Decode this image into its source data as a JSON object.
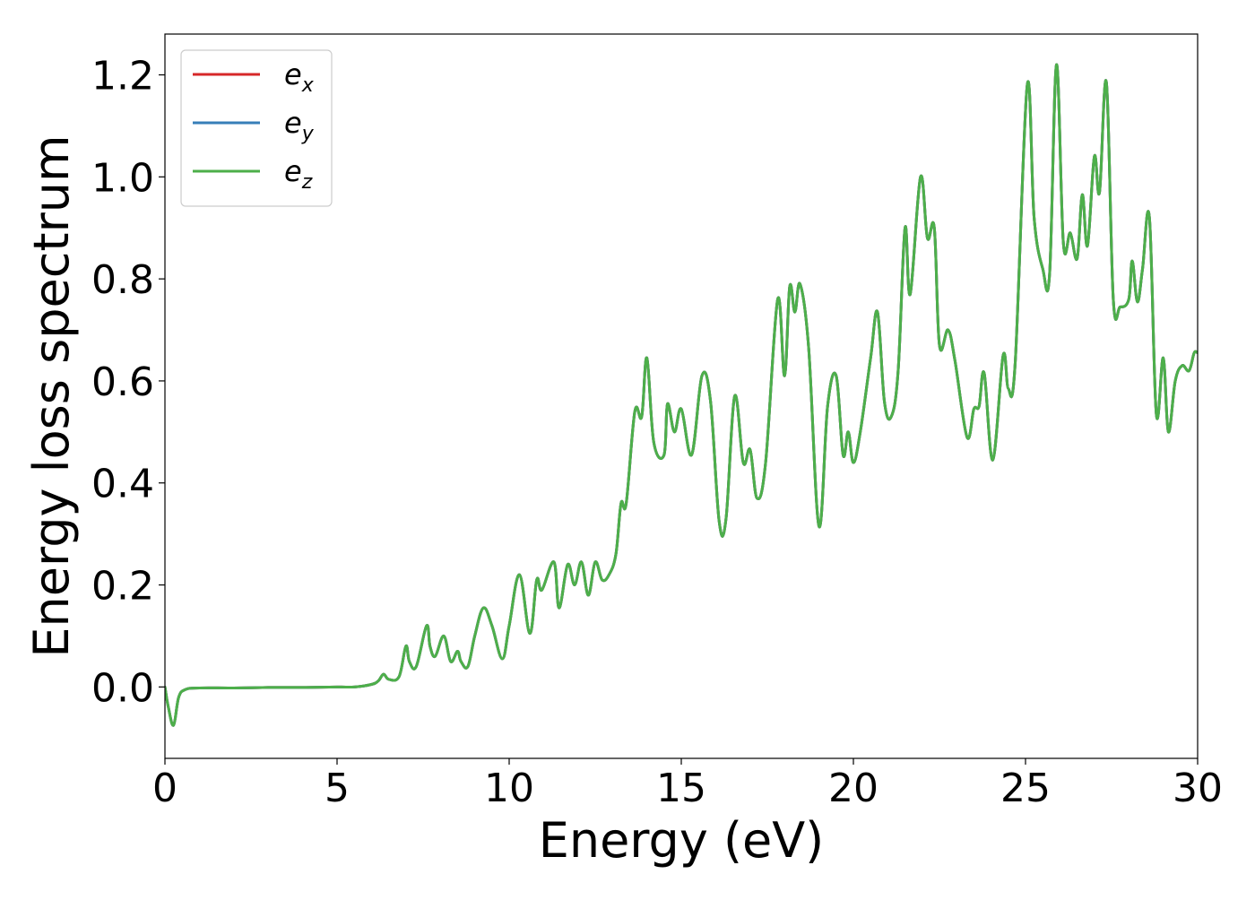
{
  "chart_data": {
    "type": "line",
    "xlabel": "Energy (eV)",
    "ylabel": "Energy loss spectrum",
    "xlim": [
      0,
      30
    ],
    "ylim": [
      -0.14,
      1.28
    ],
    "xticks": [
      0,
      5,
      10,
      15,
      20,
      25,
      30
    ],
    "xtick_labels": [
      "0",
      "5",
      "10",
      "15",
      "20",
      "25",
      "30"
    ],
    "yticks": [
      0.0,
      0.2,
      0.4,
      0.6,
      0.8,
      1.0,
      1.2
    ],
    "ytick_labels": [
      "0.0",
      "0.2",
      "0.4",
      "0.6",
      "0.8",
      "1.0",
      "1.2"
    ],
    "grid": false,
    "legend_position": "top-left",
    "series": [
      {
        "name": "e_x",
        "legend_base": "e",
        "legend_sub": "x",
        "color": "#d62728",
        "x": [
          0,
          0.1,
          0.25,
          0.4,
          0.6,
          1,
          2,
          3,
          4,
          5,
          5.5,
          6,
          6.2,
          6.35,
          6.5,
          6.8,
          7,
          7.1,
          7.3,
          7.6,
          7.7,
          7.85,
          8.1,
          8.3,
          8.5,
          8.6,
          8.8,
          9,
          9.25,
          9.5,
          9.8,
          10,
          10.3,
          10.6,
          10.8,
          10.95,
          11.3,
          11.45,
          11.7,
          11.9,
          12.1,
          12.3,
          12.5,
          12.7,
          12.9,
          13.1,
          13.25,
          13.4,
          13.65,
          13.85,
          14,
          14.2,
          14.5,
          14.6,
          14.8,
          15,
          15.3,
          15.6,
          15.85,
          16.1,
          16.3,
          16.55,
          16.8,
          17,
          17.2,
          17.45,
          17.8,
          18,
          18.15,
          18.3,
          18.45,
          18.7,
          19,
          19.25,
          19.5,
          19.7,
          19.85,
          20,
          20.2,
          20.5,
          20.7,
          20.9,
          21.1,
          21.3,
          21.5,
          21.65,
          21.95,
          22.15,
          22.35,
          22.5,
          22.75,
          22.95,
          23.3,
          23.5,
          23.65,
          23.8,
          24.05,
          24.35,
          24.5,
          24.7,
          25.05,
          25.25,
          25.5,
          25.7,
          25.9,
          26.1,
          26.3,
          26.5,
          26.65,
          26.8,
          27,
          27.15,
          27.35,
          27.55,
          27.75,
          28,
          28.1,
          28.25,
          28.4,
          28.6,
          28.8,
          29,
          29.15,
          29.35,
          29.55,
          29.75,
          29.9,
          30
        ],
        "y": [
          0.0,
          -0.04,
          -0.075,
          -0.02,
          -0.005,
          -0.002,
          -0.002,
          -0.001,
          -0.001,
          0.0,
          0.0,
          0.005,
          0.012,
          0.025,
          0.015,
          0.02,
          0.08,
          0.05,
          0.04,
          0.12,
          0.08,
          0.06,
          0.1,
          0.05,
          0.07,
          0.05,
          0.04,
          0.1,
          0.155,
          0.12,
          0.055,
          0.12,
          0.22,
          0.105,
          0.21,
          0.19,
          0.245,
          0.155,
          0.24,
          0.2,
          0.245,
          0.18,
          0.245,
          0.21,
          0.22,
          0.26,
          0.36,
          0.36,
          0.54,
          0.53,
          0.645,
          0.48,
          0.455,
          0.555,
          0.5,
          0.545,
          0.455,
          0.61,
          0.56,
          0.325,
          0.33,
          0.57,
          0.44,
          0.465,
          0.37,
          0.44,
          0.76,
          0.61,
          0.785,
          0.735,
          0.79,
          0.665,
          0.315,
          0.55,
          0.61,
          0.455,
          0.5,
          0.44,
          0.5,
          0.645,
          0.735,
          0.56,
          0.53,
          0.62,
          0.9,
          0.77,
          1.0,
          0.88,
          0.9,
          0.67,
          0.7,
          0.64,
          0.49,
          0.545,
          0.55,
          0.615,
          0.445,
          0.65,
          0.585,
          0.635,
          1.18,
          0.92,
          0.82,
          0.81,
          1.22,
          0.87,
          0.89,
          0.84,
          0.965,
          0.865,
          1.04,
          0.97,
          1.185,
          0.76,
          0.745,
          0.76,
          0.835,
          0.755,
          0.82,
          0.92,
          0.535,
          0.645,
          0.5,
          0.6,
          0.63,
          0.62,
          0.655,
          0.655
        ]
      },
      {
        "name": "e_y",
        "legend_base": "e",
        "legend_sub": "y",
        "color": "#377eb8",
        "x": [
          0,
          0.1,
          0.25,
          0.4,
          0.6,
          1,
          2,
          3,
          4,
          5,
          5.5,
          6,
          6.2,
          6.35,
          6.5,
          6.8,
          7,
          7.1,
          7.3,
          7.6,
          7.7,
          7.85,
          8.1,
          8.3,
          8.5,
          8.6,
          8.8,
          9,
          9.25,
          9.5,
          9.8,
          10,
          10.3,
          10.6,
          10.8,
          10.95,
          11.3,
          11.45,
          11.7,
          11.9,
          12.1,
          12.3,
          12.5,
          12.7,
          12.9,
          13.1,
          13.25,
          13.4,
          13.65,
          13.85,
          14,
          14.2,
          14.5,
          14.6,
          14.8,
          15,
          15.3,
          15.6,
          15.85,
          16.1,
          16.3,
          16.55,
          16.8,
          17,
          17.2,
          17.45,
          17.8,
          18,
          18.15,
          18.3,
          18.45,
          18.7,
          19,
          19.25,
          19.5,
          19.7,
          19.85,
          20,
          20.2,
          20.5,
          20.7,
          20.9,
          21.1,
          21.3,
          21.5,
          21.65,
          21.95,
          22.15,
          22.35,
          22.5,
          22.75,
          22.95,
          23.3,
          23.5,
          23.65,
          23.8,
          24.05,
          24.35,
          24.5,
          24.7,
          25.05,
          25.25,
          25.5,
          25.7,
          25.9,
          26.1,
          26.3,
          26.5,
          26.65,
          26.8,
          27,
          27.15,
          27.35,
          27.55,
          27.75,
          28,
          28.1,
          28.25,
          28.4,
          28.6,
          28.8,
          29,
          29.15,
          29.35,
          29.55,
          29.75,
          29.9,
          30
        ],
        "y": [
          0.0,
          -0.04,
          -0.075,
          -0.02,
          -0.005,
          -0.002,
          -0.002,
          -0.001,
          -0.001,
          0.0,
          0.0,
          0.005,
          0.012,
          0.025,
          0.015,
          0.02,
          0.08,
          0.05,
          0.04,
          0.12,
          0.08,
          0.06,
          0.1,
          0.05,
          0.07,
          0.05,
          0.04,
          0.1,
          0.155,
          0.12,
          0.055,
          0.12,
          0.22,
          0.105,
          0.21,
          0.19,
          0.245,
          0.155,
          0.24,
          0.2,
          0.245,
          0.18,
          0.245,
          0.21,
          0.22,
          0.26,
          0.36,
          0.36,
          0.54,
          0.53,
          0.645,
          0.48,
          0.455,
          0.555,
          0.5,
          0.545,
          0.455,
          0.61,
          0.56,
          0.325,
          0.33,
          0.57,
          0.44,
          0.465,
          0.37,
          0.44,
          0.76,
          0.61,
          0.785,
          0.735,
          0.79,
          0.665,
          0.315,
          0.55,
          0.61,
          0.455,
          0.5,
          0.44,
          0.5,
          0.645,
          0.735,
          0.56,
          0.53,
          0.62,
          0.9,
          0.77,
          1.0,
          0.88,
          0.9,
          0.67,
          0.7,
          0.64,
          0.49,
          0.545,
          0.55,
          0.615,
          0.445,
          0.65,
          0.585,
          0.635,
          1.18,
          0.92,
          0.82,
          0.81,
          1.22,
          0.87,
          0.89,
          0.84,
          0.965,
          0.865,
          1.04,
          0.97,
          1.185,
          0.76,
          0.745,
          0.76,
          0.835,
          0.755,
          0.82,
          0.92,
          0.535,
          0.645,
          0.5,
          0.6,
          0.63,
          0.62,
          0.655,
          0.655
        ]
      },
      {
        "name": "e_z",
        "legend_base": "e",
        "legend_sub": "z",
        "color": "#4daf4a",
        "x": [
          0,
          0.1,
          0.25,
          0.4,
          0.6,
          1,
          2,
          3,
          4,
          5,
          5.5,
          6,
          6.2,
          6.35,
          6.5,
          6.8,
          7,
          7.1,
          7.3,
          7.6,
          7.7,
          7.85,
          8.1,
          8.3,
          8.5,
          8.6,
          8.8,
          9,
          9.25,
          9.5,
          9.8,
          10,
          10.3,
          10.6,
          10.8,
          10.95,
          11.3,
          11.45,
          11.7,
          11.9,
          12.1,
          12.3,
          12.5,
          12.7,
          12.9,
          13.1,
          13.25,
          13.4,
          13.65,
          13.85,
          14,
          14.2,
          14.5,
          14.6,
          14.8,
          15,
          15.3,
          15.6,
          15.85,
          16.1,
          16.3,
          16.55,
          16.8,
          17,
          17.2,
          17.45,
          17.8,
          18,
          18.15,
          18.3,
          18.45,
          18.7,
          19,
          19.25,
          19.5,
          19.7,
          19.85,
          20,
          20.2,
          20.5,
          20.7,
          20.9,
          21.1,
          21.3,
          21.5,
          21.65,
          21.95,
          22.15,
          22.35,
          22.5,
          22.75,
          22.95,
          23.3,
          23.5,
          23.65,
          23.8,
          24.05,
          24.35,
          24.5,
          24.7,
          25.05,
          25.25,
          25.5,
          25.7,
          25.9,
          26.1,
          26.3,
          26.5,
          26.65,
          26.8,
          27,
          27.15,
          27.35,
          27.55,
          27.75,
          28,
          28.1,
          28.25,
          28.4,
          28.6,
          28.8,
          29,
          29.15,
          29.35,
          29.55,
          29.75,
          29.9,
          30
        ],
        "y": [
          0.0,
          -0.04,
          -0.075,
          -0.02,
          -0.005,
          -0.002,
          -0.002,
          -0.001,
          -0.001,
          0.0,
          0.0,
          0.005,
          0.012,
          0.025,
          0.015,
          0.02,
          0.08,
          0.05,
          0.04,
          0.12,
          0.08,
          0.06,
          0.1,
          0.05,
          0.07,
          0.05,
          0.04,
          0.1,
          0.155,
          0.12,
          0.055,
          0.12,
          0.22,
          0.105,
          0.21,
          0.19,
          0.245,
          0.155,
          0.24,
          0.2,
          0.245,
          0.18,
          0.245,
          0.21,
          0.22,
          0.26,
          0.36,
          0.36,
          0.54,
          0.53,
          0.645,
          0.48,
          0.455,
          0.555,
          0.5,
          0.545,
          0.455,
          0.61,
          0.56,
          0.325,
          0.33,
          0.57,
          0.44,
          0.465,
          0.37,
          0.44,
          0.76,
          0.61,
          0.785,
          0.735,
          0.79,
          0.665,
          0.315,
          0.55,
          0.61,
          0.455,
          0.5,
          0.44,
          0.5,
          0.645,
          0.735,
          0.56,
          0.53,
          0.62,
          0.9,
          0.77,
          1.0,
          0.88,
          0.9,
          0.67,
          0.7,
          0.64,
          0.49,
          0.545,
          0.55,
          0.615,
          0.445,
          0.65,
          0.585,
          0.635,
          1.18,
          0.92,
          0.82,
          0.81,
          1.22,
          0.87,
          0.89,
          0.84,
          0.965,
          0.865,
          1.04,
          0.97,
          1.185,
          0.76,
          0.745,
          0.76,
          0.835,
          0.755,
          0.82,
          0.92,
          0.535,
          0.645,
          0.5,
          0.6,
          0.63,
          0.62,
          0.655,
          0.655
        ]
      }
    ]
  }
}
